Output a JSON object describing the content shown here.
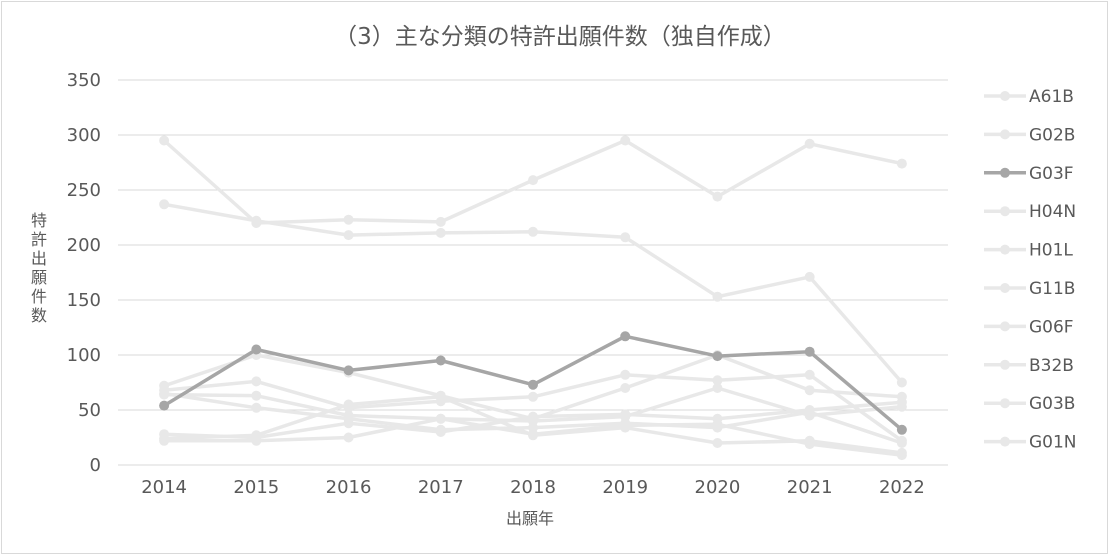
{
  "chart_data": {
    "type": "line",
    "title": "（3）主な分類の特許出願件数（独自作成）",
    "xlabel": "出願年",
    "ylabel_chars": [
      "特",
      "許",
      "出",
      "願",
      "件",
      "数"
    ],
    "x": [
      "2014",
      "2015",
      "2016",
      "2017",
      "2018",
      "2019",
      "2020",
      "2021",
      "2022"
    ],
    "ylim": [
      0,
      350
    ],
    "yticks": [
      0,
      50,
      100,
      150,
      200,
      250,
      300,
      350
    ],
    "grid": true,
    "legend_position": "right",
    "series": [
      {
        "name": "A61B",
        "color": "#e8e8e8",
        "values": [
          295,
          220,
          223,
          221,
          259,
          295,
          244,
          292,
          274
        ]
      },
      {
        "name": "G02B",
        "color": "#e8e8e8",
        "values": [
          237,
          222,
          209,
          211,
          212,
          207,
          153,
          171,
          75
        ]
      },
      {
        "name": "G03F",
        "color": "#a6a6a6",
        "values": [
          54,
          105,
          86,
          95,
          73,
          117,
          99,
          103,
          32
        ]
      },
      {
        "name": "H04N",
        "color": "#e8e8e8",
        "values": [
          72,
          100,
          84,
          63,
          42,
          70,
          100,
          68,
          62
        ]
      },
      {
        "name": "H01L",
        "color": "#e8e8e8",
        "values": [
          68,
          76,
          52,
          58,
          62,
          82,
          77,
          82,
          22
        ]
      },
      {
        "name": "G11B",
        "color": "#e8e8e8",
        "values": [
          64,
          63,
          45,
          42,
          40,
          44,
          70,
          45,
          53
        ]
      },
      {
        "name": "G06F",
        "color": "#e8e8e8",
        "values": [
          65,
          52,
          42,
          32,
          34,
          38,
          34,
          48,
          20
        ]
      },
      {
        "name": "B32B",
        "color": "#e8e8e8",
        "values": [
          28,
          25,
          38,
          30,
          44,
          46,
          42,
          50,
          57
        ]
      },
      {
        "name": "G03B",
        "color": "#e8e8e8",
        "values": [
          24,
          27,
          55,
          62,
          27,
          34,
          20,
          22,
          11
        ]
      },
      {
        "name": "G01N",
        "color": "#e8e8e8",
        "values": [
          22,
          22,
          25,
          42,
          28,
          36,
          37,
          19,
          9
        ]
      }
    ]
  }
}
